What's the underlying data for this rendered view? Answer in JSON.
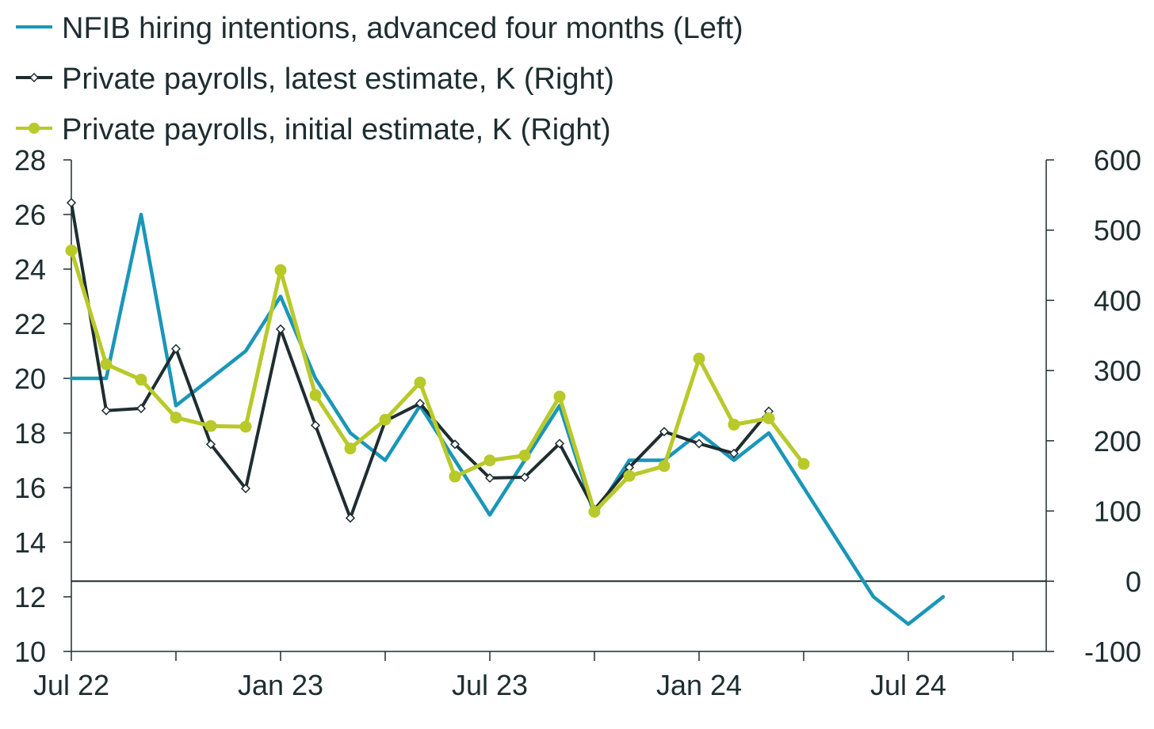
{
  "chart_data": {
    "type": "line",
    "title": "",
    "xlabel": "",
    "ylabel_left": "",
    "ylabel_right": "",
    "x": [
      "2022-07",
      "2022-08",
      "2022-09",
      "2022-10",
      "2022-11",
      "2022-12",
      "2023-01",
      "2023-02",
      "2023-03",
      "2023-04",
      "2023-05",
      "2023-06",
      "2023-07",
      "2023-08",
      "2023-09",
      "2023-10",
      "2023-11",
      "2023-12",
      "2024-01",
      "2024-02",
      "2024-03",
      "2024-04",
      "2024-05",
      "2024-06",
      "2024-07",
      "2024-08"
    ],
    "x_tick_labels": [
      "Jul 22",
      "Jan 23",
      "Jul 23",
      "Jan 24",
      "Jul 24"
    ],
    "x_tick_label_months": [
      0,
      6,
      12,
      18,
      24
    ],
    "x_minor_tick_months": [
      0,
      3,
      6,
      9,
      12,
      15,
      18,
      21,
      24,
      27
    ],
    "y_left": {
      "ylim": [
        10,
        28
      ],
      "ticks": [
        "10",
        "12",
        "14",
        "16",
        "18",
        "20",
        "22",
        "24",
        "26",
        "28"
      ]
    },
    "y_right": {
      "ylim": [
        -100,
        600
      ],
      "ticks": [
        "-100",
        "0",
        "100",
        "200",
        "300",
        "400",
        "500",
        "600"
      ],
      "zero_line": 0
    },
    "series": [
      {
        "name": "NFIB hiring intentions, advanced four months (Left)",
        "axis": "left",
        "color": "#1a96b8",
        "marker": "none",
        "values": [
          20,
          20,
          26,
          19,
          20,
          21,
          23,
          20,
          18,
          17,
          19,
          17,
          15,
          17,
          19,
          15,
          17,
          17,
          18,
          17,
          18,
          16,
          14,
          12,
          11,
          12
        ]
      },
      {
        "name": "Private payrolls, latest estimate, K (Right)",
        "axis": "right",
        "color": "#1e2d30",
        "marker": "diamond",
        "values": [
          539,
          243,
          246,
          331,
          195,
          132,
          359,
          222,
          90,
          228,
          253,
          195,
          147,
          148,
          196,
          102,
          162,
          213,
          196,
          182,
          242,
          null,
          null,
          null,
          null,
          null
        ]
      },
      {
        "name": "Private payrolls, initial estimate, K (Right)",
        "axis": "right",
        "color": "#b8c92a",
        "marker": "circle",
        "values": [
          471,
          309,
          287,
          233,
          221,
          220,
          443,
          265,
          189,
          230,
          283,
          149,
          172,
          179,
          263,
          99,
          150,
          164,
          317,
          223,
          232,
          167,
          null,
          null,
          null,
          null
        ]
      }
    ]
  }
}
